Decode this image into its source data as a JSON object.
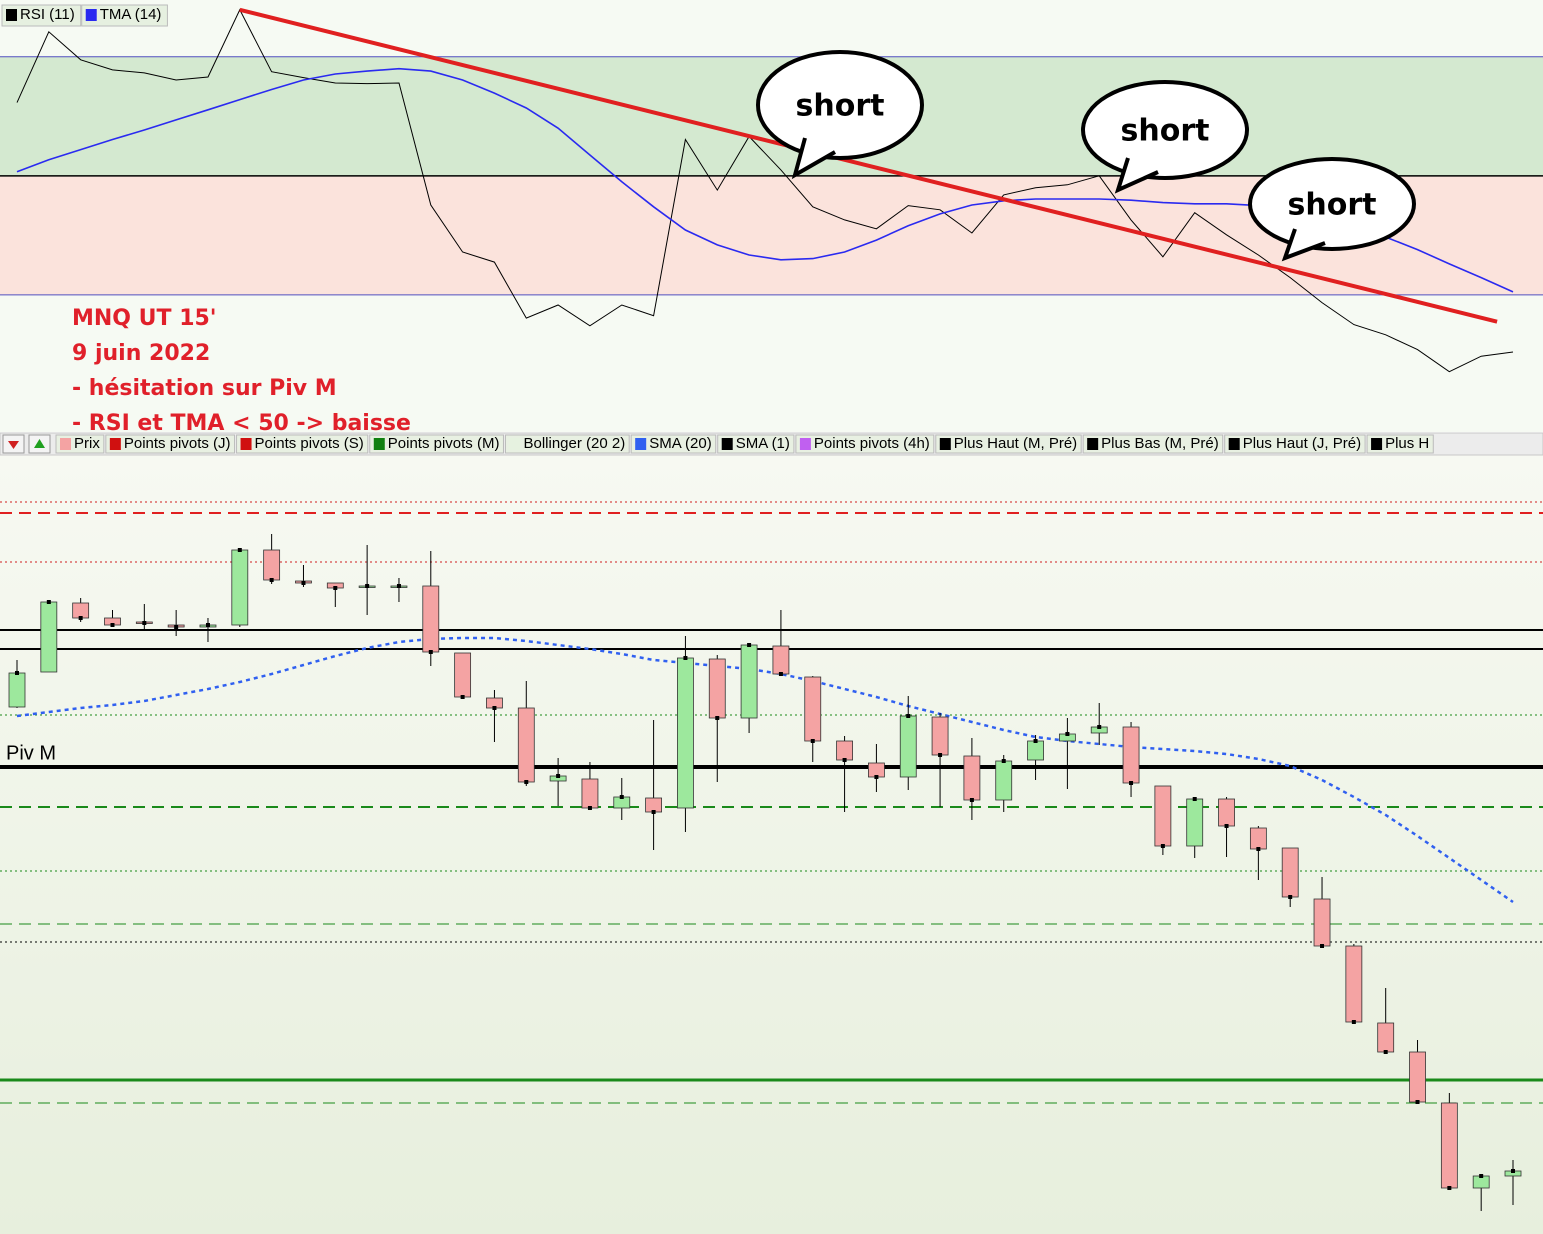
{
  "chart_data": [
    {
      "type": "line",
      "ylim": [
        7.3,
        78.7
      ],
      "bands": [
        {
          "from": 50,
          "to": 70,
          "color": "#d4e9d0"
        },
        {
          "from": 30,
          "to": 50,
          "color": "#fbe3dc"
        }
      ],
      "levels": [
        {
          "value": 70,
          "color": "#5050c0",
          "width": 1
        },
        {
          "value": 50,
          "color": "#000000",
          "width": 1.5
        },
        {
          "value": 30,
          "color": "#5050c0",
          "width": 1
        }
      ],
      "series": [
        {
          "name": "RSI (11)",
          "color": "#000000",
          "values": [
            62.3,
            74.2,
            69.5,
            67.8,
            67.3,
            66.1,
            66.6,
            77.9,
            67.5,
            66.5,
            65.6,
            65.5,
            65.6,
            45.1,
            37.2,
            35.5,
            26.1,
            28.3,
            24.8,
            28.3,
            26.5,
            56.1,
            47.6,
            56.6,
            51.0,
            44.8,
            42.6,
            41.1,
            45.0,
            44.3,
            40.4,
            46.8,
            48.0,
            48.5,
            50.0,
            42.6,
            36.4,
            43.8,
            40.1,
            36.7,
            32.9,
            28.7,
            25.0,
            23.3,
            20.8,
            17.1,
            19.7,
            20.4
          ]
        },
        {
          "name": "TMA (14)",
          "color": "#2a2af0",
          "values": [
            50.7,
            52.7,
            54.4,
            56.1,
            57.7,
            59.4,
            61.1,
            62.8,
            64.5,
            66.1,
            67.1,
            67.6,
            68.0,
            67.6,
            66.1,
            63.9,
            61.4,
            58.0,
            53.5,
            49.0,
            44.8,
            40.9,
            38.4,
            36.7,
            35.9,
            36.1,
            37.2,
            39.2,
            41.6,
            43.6,
            45.1,
            45.8,
            46.1,
            46.1,
            46.1,
            45.9,
            45.5,
            45.3,
            45.3,
            45.0,
            44.1,
            42.9,
            41.6,
            39.7,
            37.6,
            35.2,
            32.9,
            30.5
          ]
        }
      ],
      "trendline": {
        "color": "#e02020",
        "x": [
          7,
          46.5
        ],
        "values": [
          77.9,
          25.5
        ]
      }
    },
    {
      "type": "candlestick",
      "ylim": [
        0,
        77.9
      ],
      "up_color": "#9de89d",
      "down_color": "#f4a3a3",
      "legend": [
        {
          "name": "Prix",
          "color": "#f4a3a3"
        },
        {
          "name": "Points pivots (J)",
          "color": "#d01010"
        },
        {
          "name": "Points pivots (S)",
          "color": "#d01010"
        },
        {
          "name": "Points pivots (M)",
          "color": "#108010"
        },
        {
          "name": "Bollinger (20 2)",
          "color": "#e6f2e0"
        },
        {
          "name": "SMA (20)",
          "color": "#3060f0"
        },
        {
          "name": "SMA (1)",
          "color": "#000000"
        },
        {
          "name": "Points pivots (4h)",
          "color": "#c060f0"
        },
        {
          "name": "Plus Haut (M, Pré)",
          "color": "#000000"
        },
        {
          "name": "Plus Bas (M, Pré)",
          "color": "#000000"
        },
        {
          "name": "Plus Haut (J, Pré)",
          "color": "#000000"
        },
        {
          "name": "Plus H",
          "color": "#000000"
        }
      ],
      "open": [
        52.7,
        56.2,
        63.1,
        61.6,
        61.2,
        60.9,
        60.7,
        60.9,
        68.4,
        65.3,
        65.1,
        64.8,
        64.7,
        64.8,
        58.1,
        53.6,
        52.6,
        45.3,
        45.5,
        42.6,
        43.6,
        42.6,
        57.5,
        51.6,
        58.8,
        55.7,
        49.3,
        47.1,
        45.7,
        51.7,
        47.8,
        43.4,
        47.4,
        49.3,
        50.1,
        50.7,
        44.8,
        38.8,
        43.5,
        40.6,
        38.6,
        33.5,
        28.8,
        21.1,
        18.2,
        13.1,
        4.6,
        5.8
      ],
      "high": [
        57.4,
        63.4,
        63.6,
        62.4,
        63.0,
        62.4,
        61.6,
        68.6,
        70.0,
        66.9,
        65.1,
        68.9,
        65.6,
        68.3,
        58.1,
        54.4,
        55.3,
        47.6,
        47.2,
        45.6,
        51.4,
        59.8,
        57.9,
        59.1,
        62.4,
        55.8,
        49.8,
        49.0,
        53.8,
        52.1,
        49.6,
        47.9,
        49.9,
        51.6,
        53.1,
        51.2,
        44.8,
        43.7,
        43.7,
        40.8,
        38.6,
        35.7,
        29.0,
        24.6,
        19.4,
        14.1,
        6.0,
        7.4
      ],
      "low": [
        52.6,
        56.2,
        61.2,
        60.7,
        60.4,
        59.8,
        59.2,
        60.7,
        65.0,
        64.7,
        62.7,
        61.9,
        63.2,
        56.8,
        53.7,
        49.2,
        44.8,
        42.8,
        42.4,
        41.4,
        38.4,
        40.2,
        45.2,
        50.1,
        55.8,
        47.2,
        42.2,
        44.2,
        44.4,
        42.7,
        41.4,
        42.2,
        45.4,
        44.5,
        48.9,
        43.7,
        37.9,
        37.6,
        37.7,
        35.4,
        32.7,
        28.6,
        21.0,
        18.0,
        13.0,
        4.4,
        2.3,
        2.9
      ],
      "close": [
        56.1,
        63.2,
        61.6,
        60.9,
        61.1,
        60.7,
        60.9,
        68.4,
        65.4,
        65.1,
        64.6,
        64.8,
        64.8,
        58.2,
        53.7,
        52.6,
        45.2,
        45.8,
        42.6,
        43.7,
        42.2,
        57.6,
        51.6,
        58.9,
        56.0,
        49.3,
        47.4,
        45.7,
        51.8,
        47.9,
        43.4,
        47.3,
        49.3,
        50.0,
        50.7,
        45.1,
        38.8,
        43.5,
        40.8,
        38.5,
        33.7,
        28.8,
        21.2,
        18.2,
        13.2,
        4.6,
        5.8,
        6.3
      ],
      "series": [
        {
          "name": "SMA (20)",
          "color": "#3060f0",
          "values": [
            51.8,
            52.2,
            52.6,
            52.9,
            53.3,
            53.9,
            54.5,
            55.2,
            56.0,
            56.9,
            57.8,
            58.6,
            59.2,
            59.5,
            59.6,
            59.6,
            59.3,
            58.9,
            58.5,
            58.0,
            57.4,
            57.1,
            56.8,
            56.5,
            56.0,
            55.3,
            54.5,
            53.7,
            52.8,
            52.0,
            51.2,
            50.4,
            49.7,
            49.3,
            49.0,
            48.7,
            48.5,
            48.3,
            48.0,
            47.5,
            46.8,
            45.4,
            43.7,
            41.9,
            39.8,
            37.6,
            35.4,
            33.2
          ]
        }
      ],
      "levels": [
        {
          "value": 73.2,
          "color": "#d02020",
          "style": "dotted",
          "width": 1
        },
        {
          "value": 72.1,
          "color": "#e02020",
          "style": "dashed",
          "width": 2
        },
        {
          "value": 67.2,
          "color": "#d02020",
          "style": "dotted",
          "width": 1
        },
        {
          "value": 60.4,
          "color": "#000000",
          "style": "solid",
          "width": 2
        },
        {
          "value": 58.5,
          "color": "#000000",
          "style": "solid",
          "width": 2
        },
        {
          "value": 51.9,
          "color": "#1a8a1a",
          "style": "dotted",
          "width": 1
        },
        {
          "value": 46.7,
          "color": "#000000",
          "style": "solid",
          "width": 4,
          "label": "Piv M"
        },
        {
          "value": 42.7,
          "color": "#1a8a1a",
          "style": "dashed",
          "width": 2
        },
        {
          "value": 36.3,
          "color": "#1a8a1a",
          "style": "dotted",
          "width": 1
        },
        {
          "value": 31.0,
          "color": "#1a8a1a",
          "style": "dashed",
          "width": 1
        },
        {
          "value": 29.2,
          "color": "#000000",
          "style": "dotted",
          "width": 1
        },
        {
          "value": 15.4,
          "color": "#1a8a1a",
          "style": "solid",
          "width": 3
        },
        {
          "value": 13.1,
          "color": "#1a8a1a",
          "style": "dashed",
          "width": 1
        }
      ]
    }
  ],
  "notes": [
    "MNQ UT 15'",
    "9 juin 2022",
    "- hésitation sur Piv M",
    "- RSI et TMA < 50 -> baisse"
  ],
  "callouts": [
    "short",
    "short",
    "short"
  ]
}
